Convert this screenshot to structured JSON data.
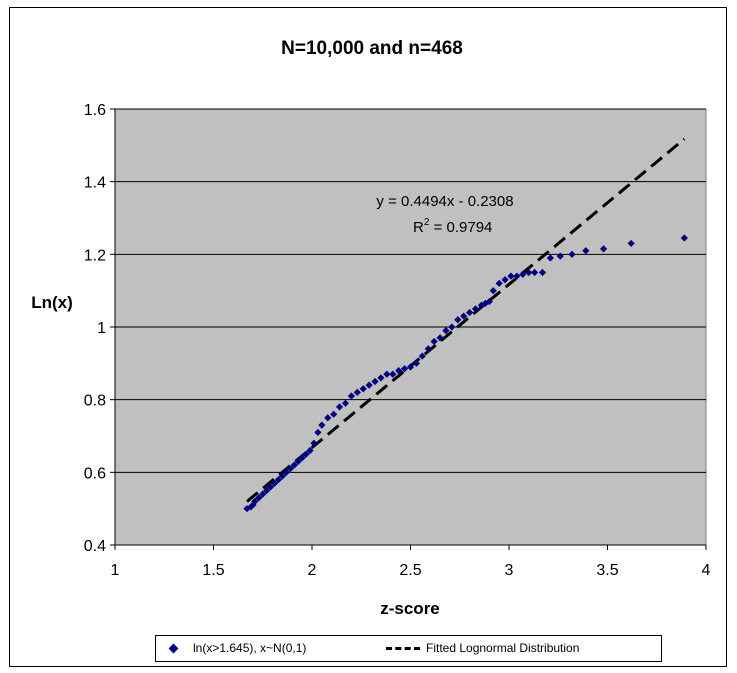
{
  "chart_data": {
    "type": "scatter",
    "title": "N=10,000 and n=468",
    "xlabel": "z-score",
    "ylabel": "Ln(x)",
    "xlim": [
      1,
      4
    ],
    "ylim": [
      0.4,
      1.6
    ],
    "x_ticks": [
      "1",
      "1.5",
      "2",
      "2.5",
      "3",
      "3.5",
      "4"
    ],
    "y_ticks": [
      "0.4",
      "0.6",
      "0.8",
      "1",
      "1.2",
      "1.4",
      "1.6"
    ],
    "grid": "horizontal",
    "legend_position": "bottom",
    "plot_background": "#c0c0c0",
    "series": [
      {
        "name": "ln(x>1.645), x~N(0,1)",
        "marker": "diamond",
        "color": "#000080",
        "points": [
          [
            1.67,
            0.5
          ],
          [
            1.69,
            0.505
          ],
          [
            1.7,
            0.51
          ],
          [
            1.71,
            0.52
          ],
          [
            1.73,
            0.53
          ],
          [
            1.75,
            0.54
          ],
          [
            1.77,
            0.55
          ],
          [
            1.79,
            0.56
          ],
          [
            1.81,
            0.57
          ],
          [
            1.83,
            0.58
          ],
          [
            1.85,
            0.59
          ],
          [
            1.87,
            0.6
          ],
          [
            1.89,
            0.61
          ],
          [
            1.91,
            0.62
          ],
          [
            1.93,
            0.63
          ],
          [
            1.95,
            0.64
          ],
          [
            1.97,
            0.65
          ],
          [
            1.99,
            0.66
          ],
          [
            2.01,
            0.68
          ],
          [
            2.03,
            0.71
          ],
          [
            2.05,
            0.73
          ],
          [
            2.08,
            0.75
          ],
          [
            2.11,
            0.76
          ],
          [
            2.14,
            0.78
          ],
          [
            2.17,
            0.79
          ],
          [
            2.2,
            0.81
          ],
          [
            2.23,
            0.82
          ],
          [
            2.26,
            0.83
          ],
          [
            2.29,
            0.84
          ],
          [
            2.32,
            0.85
          ],
          [
            2.35,
            0.86
          ],
          [
            2.38,
            0.87
          ],
          [
            2.41,
            0.87
          ],
          [
            2.44,
            0.88
          ],
          [
            2.47,
            0.885
          ],
          [
            2.5,
            0.89
          ],
          [
            2.53,
            0.9
          ],
          [
            2.56,
            0.92
          ],
          [
            2.59,
            0.94
          ],
          [
            2.62,
            0.96
          ],
          [
            2.65,
            0.97
          ],
          [
            2.68,
            0.99
          ],
          [
            2.71,
            1.0
          ],
          [
            2.74,
            1.02
          ],
          [
            2.77,
            1.03
          ],
          [
            2.8,
            1.04
          ],
          [
            2.83,
            1.05
          ],
          [
            2.86,
            1.06
          ],
          [
            2.88,
            1.065
          ],
          [
            2.9,
            1.07
          ],
          [
            2.92,
            1.1
          ],
          [
            2.95,
            1.12
          ],
          [
            2.98,
            1.13
          ],
          [
            3.01,
            1.14
          ],
          [
            3.04,
            1.14
          ],
          [
            3.07,
            1.145
          ],
          [
            3.1,
            1.15
          ],
          [
            3.13,
            1.15
          ],
          [
            3.17,
            1.15
          ],
          [
            3.21,
            1.19
          ],
          [
            3.26,
            1.195
          ],
          [
            3.32,
            1.2
          ],
          [
            3.39,
            1.21
          ],
          [
            3.48,
            1.215
          ],
          [
            3.62,
            1.23
          ],
          [
            3.89,
            1.245
          ]
        ]
      },
      {
        "name": "Fitted Lognormal Distribution",
        "style": "dashed",
        "color": "#000000",
        "slope": 0.4494,
        "intercept": -0.2308,
        "x_range": [
          1.67,
          3.89
        ]
      }
    ],
    "annotations": {
      "equation": "y = 0.4494x - 0.2308",
      "r_squared_label": "R",
      "r_squared_sup": "2",
      "r_squared_value": " = 0.9794"
    }
  }
}
